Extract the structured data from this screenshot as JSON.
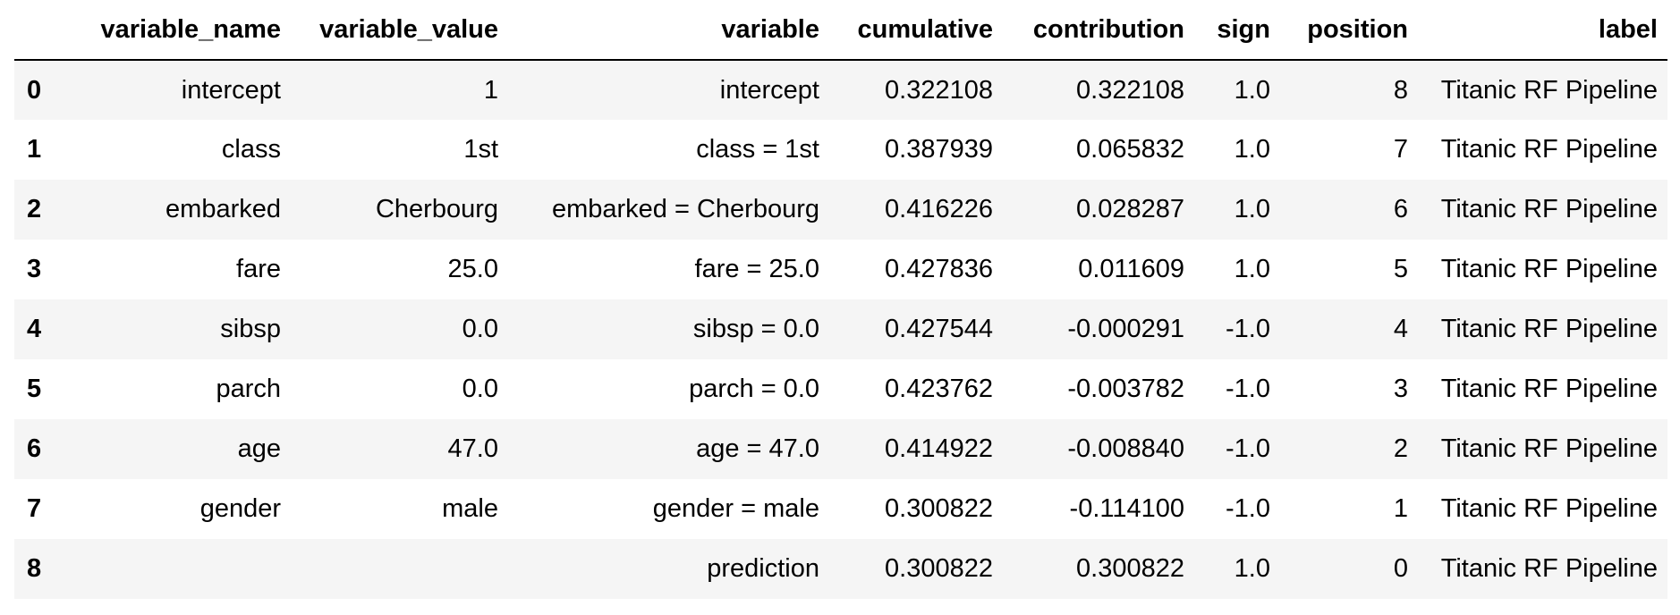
{
  "table": {
    "columns": [
      "",
      "variable_name",
      "variable_value",
      "variable",
      "cumulative",
      "contribution",
      "sign",
      "position",
      "label"
    ],
    "rows": [
      {
        "index": "0",
        "variable_name": "intercept",
        "variable_value": "1",
        "variable": "intercept",
        "cumulative": "0.322108",
        "contribution": "0.322108",
        "sign": "1.0",
        "position": "8",
        "label": "Titanic RF Pipeline"
      },
      {
        "index": "1",
        "variable_name": "class",
        "variable_value": "1st",
        "variable": "class = 1st",
        "cumulative": "0.387939",
        "contribution": "0.065832",
        "sign": "1.0",
        "position": "7",
        "label": "Titanic RF Pipeline"
      },
      {
        "index": "2",
        "variable_name": "embarked",
        "variable_value": "Cherbourg",
        "variable": "embarked = Cherbourg",
        "cumulative": "0.416226",
        "contribution": "0.028287",
        "sign": "1.0",
        "position": "6",
        "label": "Titanic RF Pipeline"
      },
      {
        "index": "3",
        "variable_name": "fare",
        "variable_value": "25.0",
        "variable": "fare = 25.0",
        "cumulative": "0.427836",
        "contribution": "0.011609",
        "sign": "1.0",
        "position": "5",
        "label": "Titanic RF Pipeline"
      },
      {
        "index": "4",
        "variable_name": "sibsp",
        "variable_value": "0.0",
        "variable": "sibsp = 0.0",
        "cumulative": "0.427544",
        "contribution": "-0.000291",
        "sign": "-1.0",
        "position": "4",
        "label": "Titanic RF Pipeline"
      },
      {
        "index": "5",
        "variable_name": "parch",
        "variable_value": "0.0",
        "variable": "parch = 0.0",
        "cumulative": "0.423762",
        "contribution": "-0.003782",
        "sign": "-1.0",
        "position": "3",
        "label": "Titanic RF Pipeline"
      },
      {
        "index": "6",
        "variable_name": "age",
        "variable_value": "47.0",
        "variable": "age = 47.0",
        "cumulative": "0.414922",
        "contribution": "-0.008840",
        "sign": "-1.0",
        "position": "2",
        "label": "Titanic RF Pipeline"
      },
      {
        "index": "7",
        "variable_name": "gender",
        "variable_value": "male",
        "variable": "gender = male",
        "cumulative": "0.300822",
        "contribution": "-0.114100",
        "sign": "-1.0",
        "position": "1",
        "label": "Titanic RF Pipeline"
      },
      {
        "index": "8",
        "variable_name": "",
        "variable_value": "",
        "variable": "prediction",
        "cumulative": "0.300822",
        "contribution": "0.300822",
        "sign": "1.0",
        "position": "0",
        "label": "Titanic RF Pipeline"
      }
    ]
  }
}
